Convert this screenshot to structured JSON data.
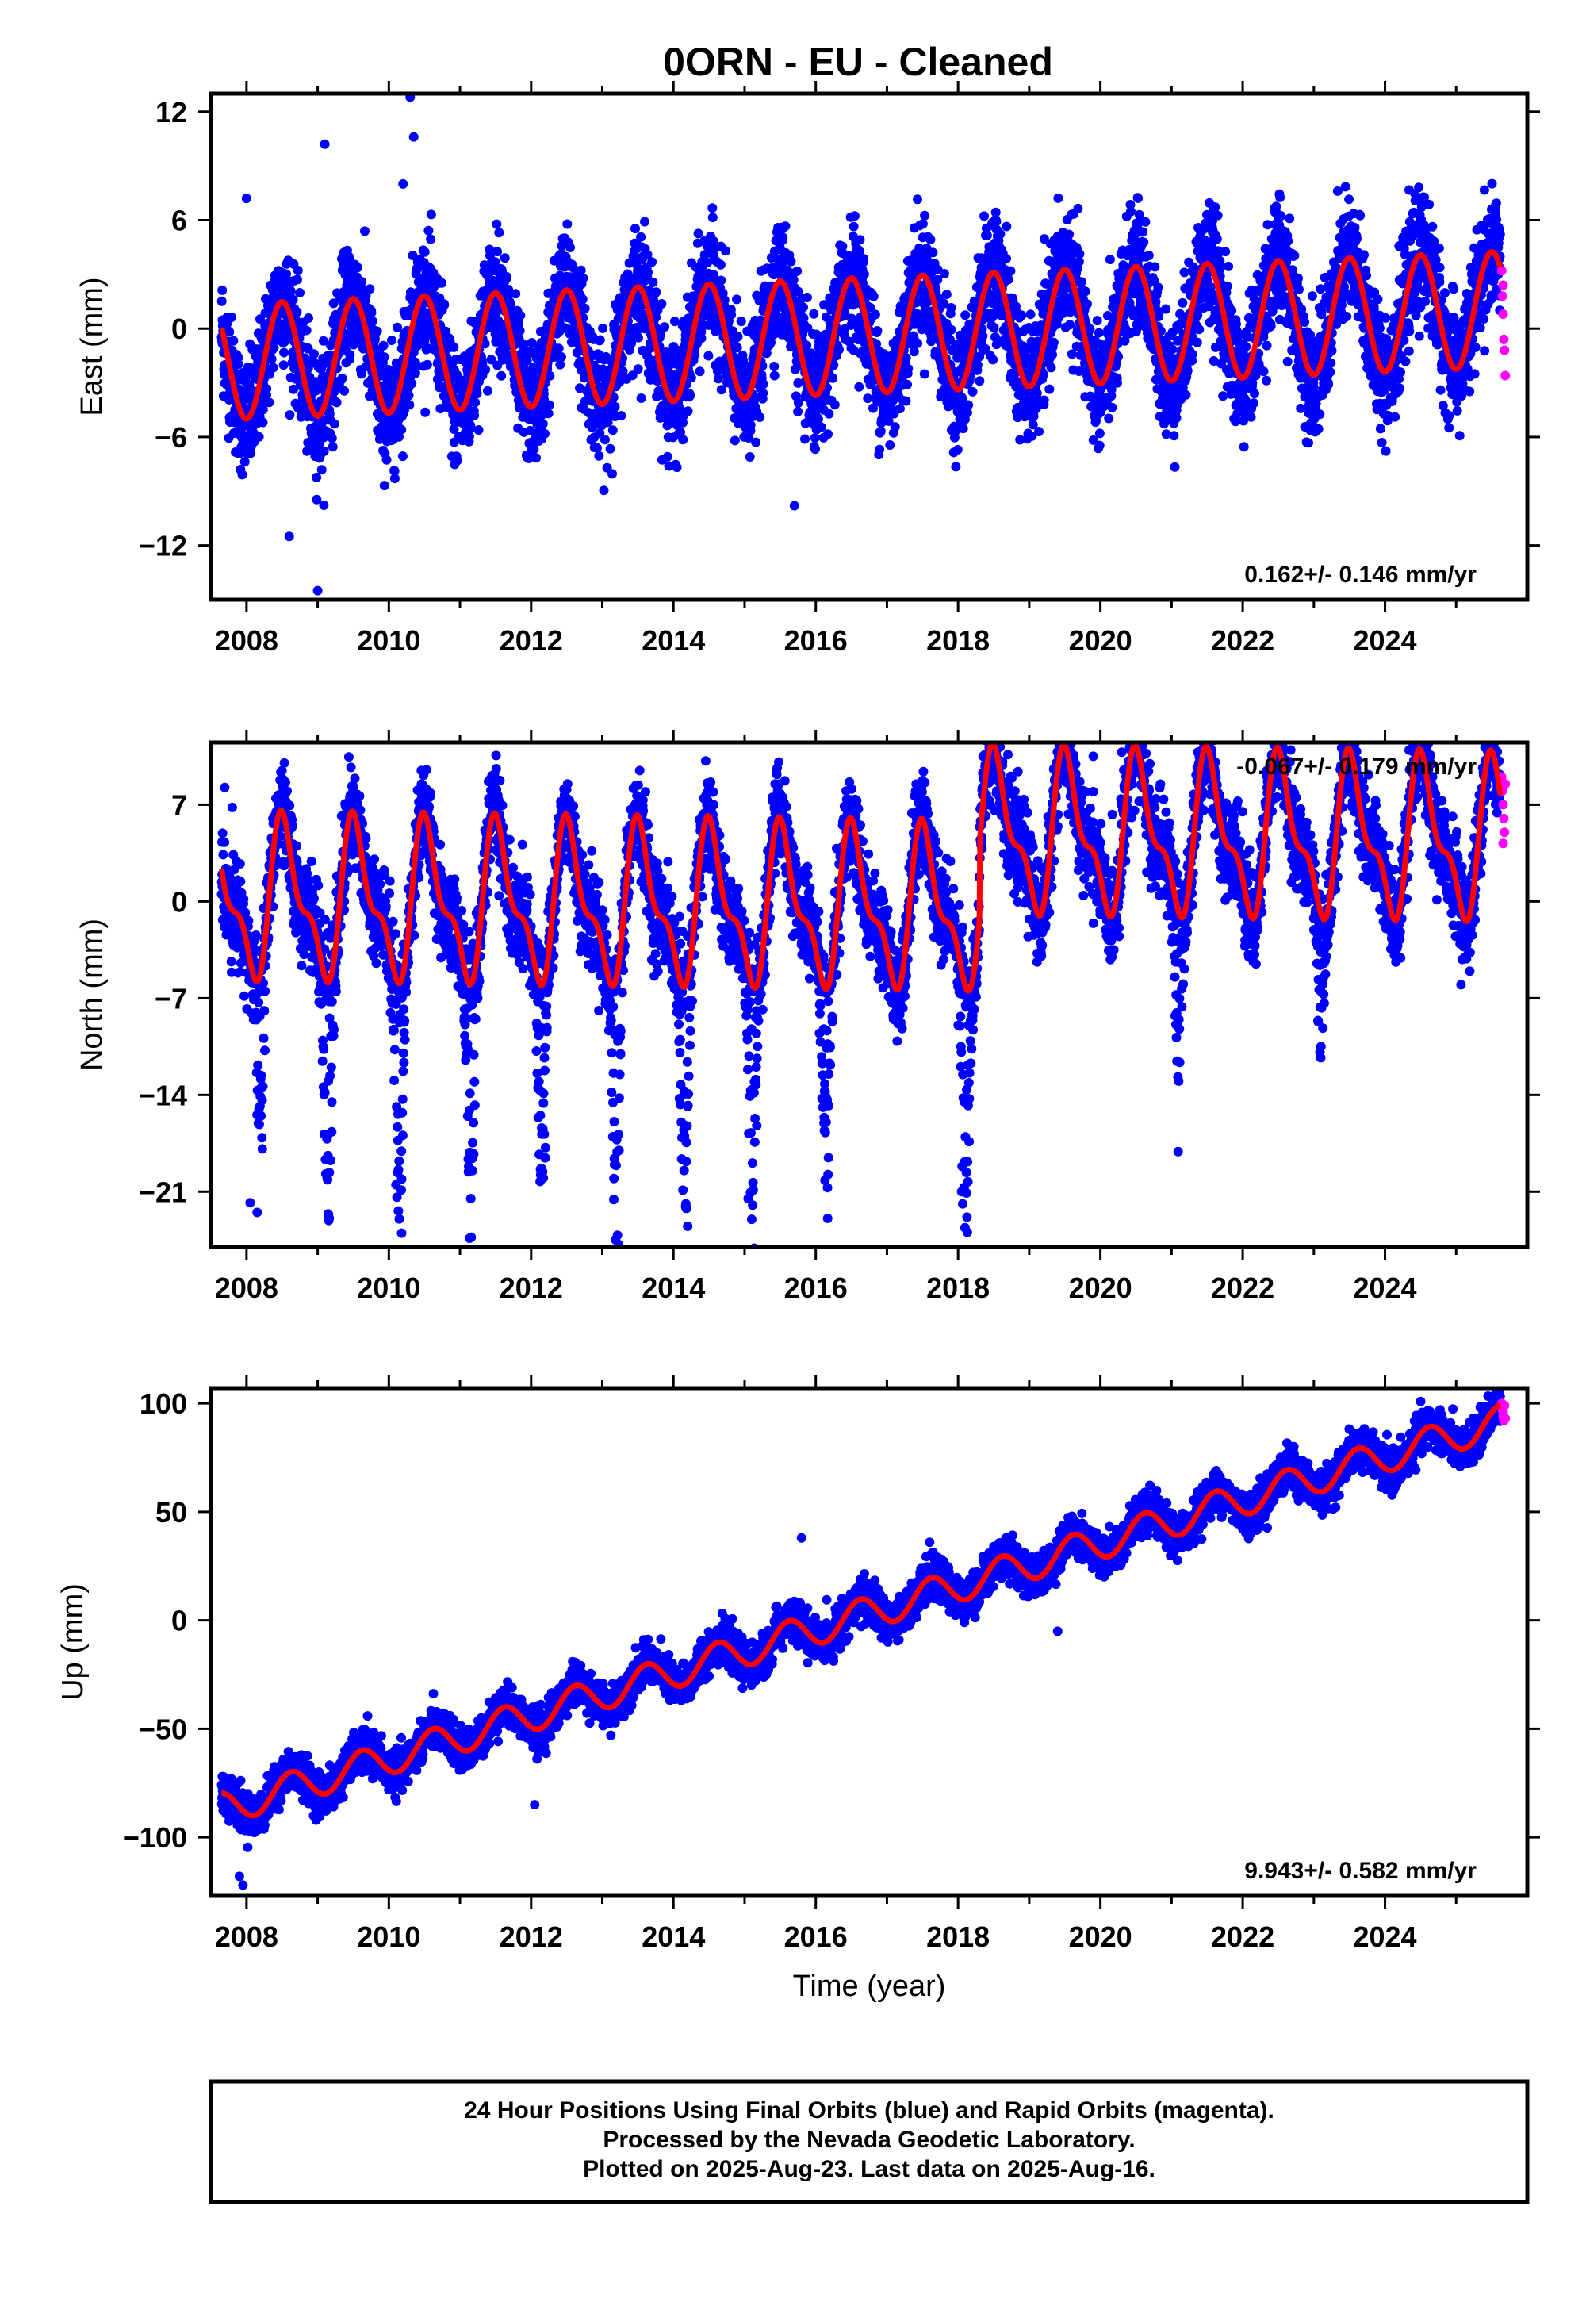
{
  "title": "0ORN  - EU - Cleaned",
  "footer": {
    "lines": [
      "24 Hour Positions Using Final Orbits (blue) and Rapid Orbits (magenta).",
      "Processed by the Nevada Geodetic Laboratory.",
      "Plotted on 2025-Aug-23. Last data on 2025-Aug-16."
    ]
  },
  "colors": {
    "final": "#0000ff",
    "rapid": "#ff00ff",
    "model": "#ff0000",
    "frame": "#000000"
  },
  "chart_data": [
    {
      "type": "scatter",
      "name": "east",
      "ylabel": "East (mm)",
      "xlabel": "",
      "xlim": [
        2007.5,
        2026.0
      ],
      "ylim": [
        -15,
        13
      ],
      "xticks": [
        2008,
        2010,
        2012,
        2014,
        2016,
        2018,
        2020,
        2022,
        2024
      ],
      "yticks": [
        -12,
        -6,
        0,
        6,
        12
      ],
      "ytick_labels": [
        "−12",
        "−6",
        "0",
        "6",
        "12"
      ],
      "rate_label": "0.162+/- 0.146 mm/yr",
      "rate_position": "bottom-right",
      "model": {
        "slope_mm_per_yr": 0.162,
        "offset_at_2016": -0.5,
        "annual_amp": 3.2,
        "annual_peak_year_fraction": 0.5,
        "semiannual_amp": 0.0,
        "semiannual_peak_year_fraction": 0.0,
        "step_year": null,
        "step_size": 0
      },
      "data_range": [
        2007.65,
        2025.62
      ],
      "scatter_sd": 1.6,
      "outliers": [
        [
          2008.6,
          -11.5
        ],
        [
          2009.0,
          -14.5
        ],
        [
          2009.1,
          10.2
        ],
        [
          2010.3,
          12.8
        ],
        [
          2010.35,
          10.6
        ],
        [
          2010.2,
          8.0
        ],
        [
          2015.7,
          -9.8
        ],
        [
          2008.0,
          7.2
        ]
      ],
      "rapid_points": [
        [
          2025.64,
          3.2
        ],
        [
          2025.65,
          1.8
        ],
        [
          2025.66,
          0.8
        ],
        [
          2025.67,
          -0.6
        ],
        [
          2025.68,
          -1.2
        ],
        [
          2025.69,
          -2.6
        ],
        [
          2025.66,
          2.4
        ]
      ]
    },
    {
      "type": "scatter",
      "name": "north",
      "ylabel": "North (mm)",
      "xlabel": "",
      "xlim": [
        2007.5,
        2026.0
      ],
      "ylim": [
        -25,
        11.5
      ],
      "xticks": [
        2008,
        2010,
        2012,
        2014,
        2016,
        2018,
        2020,
        2022,
        2024
      ],
      "yticks": [
        -21,
        -14,
        -7,
        0,
        7
      ],
      "ytick_labels": [
        "−21",
        "−14",
        "−7",
        "0",
        "7"
      ],
      "rate_label": "-0.067+/- 0.179 mm/yr",
      "rate_position": "top-right",
      "model": {
        "slope_mm_per_yr": -0.067,
        "offset_at_2016": -0.5,
        "annual_amp": 5.0,
        "annual_peak_year_fraction": 0.55,
        "semiannual_amp": 2.2,
        "semiannual_peak_year_fraction": 0.95,
        "step_year": 2018.3,
        "step_size": 5.5
      },
      "data_range": [
        2007.65,
        2025.62
      ],
      "scatter_sd": 1.7,
      "outliers": [
        [
          2008.05,
          -21.8
        ],
        [
          2008.15,
          -22.5
        ],
        [
          2010.18,
          -24.0
        ],
        [
          2010.1,
          -20.5
        ],
        [
          2014.2,
          -23.5
        ],
        [
          2015.1,
          -23.0
        ],
        [
          2015.05,
          -21.5
        ],
        [
          2018.05,
          -21.0
        ],
        [
          2021.1,
          -13.0
        ],
        [
          2023.1,
          -10.5
        ],
        [
          2019.9,
          10.5
        ],
        [
          2020.3,
          10.8
        ],
        [
          2014.5,
          5.8
        ],
        [
          2007.8,
          6.8
        ]
      ],
      "dips": [
        2008.2,
        2009.15,
        2010.15,
        2011.15,
        2012.15,
        2013.2,
        2014.15,
        2015.1,
        2016.15,
        2018.1,
        2021.1,
        2023.1
      ],
      "dip_depths": [
        15,
        18,
        20,
        19,
        17,
        19,
        20,
        20,
        16,
        20,
        13,
        10
      ],
      "rapid_points": [
        [
          2025.64,
          9.0
        ],
        [
          2025.65,
          8.0
        ],
        [
          2025.66,
          7.0
        ],
        [
          2025.67,
          6.0
        ],
        [
          2025.68,
          5.0
        ],
        [
          2025.66,
          4.2
        ],
        [
          2025.69,
          8.5
        ]
      ]
    },
    {
      "type": "scatter",
      "name": "up",
      "ylabel": "Up (mm)",
      "xlabel": "Time (year)",
      "xlim": [
        2007.5,
        2026.0
      ],
      "ylim": [
        -127,
        107
      ],
      "xticks": [
        2008,
        2010,
        2012,
        2014,
        2016,
        2018,
        2020,
        2022,
        2024
      ],
      "yticks": [
        -100,
        -50,
        0,
        50,
        100
      ],
      "ytick_labels": [
        "−100",
        "−50",
        "0",
        "50",
        "100"
      ],
      "rate_label": "9.943+/- 0.582 mm/yr",
      "rate_position": "bottom-right",
      "model": {
        "slope_mm_per_yr": 9.943,
        "offset_at_2016": -4.0,
        "annual_amp": 7.5,
        "annual_peak_year_fraction": 0.62,
        "semiannual_amp": 0.0,
        "semiannual_peak_year_fraction": 0.0,
        "step_year": null,
        "step_size": 0
      },
      "data_range": [
        2007.65,
        2025.62
      ],
      "scatter_sd": 4.5,
      "outliers": [
        [
          2007.95,
          -122
        ],
        [
          2007.9,
          -118
        ],
        [
          2012.05,
          -85
        ],
        [
          2015.8,
          38
        ],
        [
          2017.6,
          36
        ],
        [
          2019.4,
          -5
        ]
      ],
      "rapid_points": [
        [
          2025.64,
          100
        ],
        [
          2025.65,
          97
        ],
        [
          2025.66,
          94
        ],
        [
          2025.67,
          92
        ],
        [
          2025.68,
          99
        ],
        [
          2025.66,
          96
        ],
        [
          2025.69,
          93
        ]
      ]
    }
  ]
}
